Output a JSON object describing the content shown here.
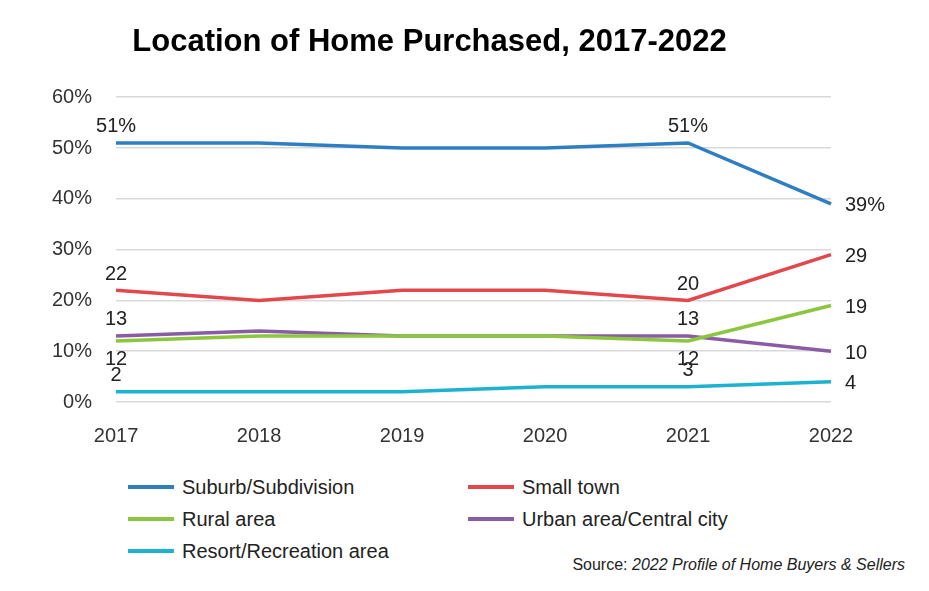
{
  "chart_data": {
    "type": "line",
    "title": "Location of Home Purchased, 2017-2022",
    "categories": [
      "2017",
      "2018",
      "2019",
      "2020",
      "2021",
      "2022"
    ],
    "series": [
      {
        "name": "Suburb/Subdivision",
        "color": "#2f7ec2",
        "values": [
          51,
          51,
          50,
          50,
          51,
          39
        ],
        "value_labels": [
          "51%",
          null,
          null,
          null,
          "51%",
          "39%"
        ]
      },
      {
        "name": "Small town",
        "color": "#e2474b",
        "values": [
          22,
          20,
          22,
          22,
          20,
          29
        ],
        "value_labels": [
          "22",
          null,
          null,
          null,
          "20",
          "29"
        ]
      },
      {
        "name": "Rural area",
        "color": "#8cc63f",
        "values": [
          12,
          13,
          13,
          13,
          12,
          19
        ],
        "value_labels": [
          "12",
          null,
          null,
          null,
          "12",
          "19"
        ]
      },
      {
        "name": "Urban area/Central city",
        "color": "#8a5ca6",
        "values": [
          13,
          14,
          13,
          13,
          13,
          10
        ],
        "value_labels": [
          "13",
          null,
          null,
          null,
          "13",
          "10"
        ]
      },
      {
        "name": "Resort/Recreation area",
        "color": "#1bb3cf",
        "values": [
          2,
          2,
          2,
          3,
          3,
          4
        ],
        "value_labels": [
          "2",
          null,
          null,
          null,
          "3",
          "4"
        ]
      }
    ],
    "ylim": [
      0,
      60
    ],
    "yticks": [
      {
        "value": 0,
        "label": "0%"
      },
      {
        "value": 10,
        "label": "10%"
      },
      {
        "value": 20,
        "label": "20%"
      },
      {
        "value": 30,
        "label": "30%"
      },
      {
        "value": 40,
        "label": "40%"
      },
      {
        "value": 50,
        "label": "50%"
      },
      {
        "value": 60,
        "label": "60%"
      }
    ],
    "grid": true,
    "legend": "bottom",
    "data_labels": true,
    "source": "Source: 2022 Profile of Home Buyers & Sellers"
  }
}
